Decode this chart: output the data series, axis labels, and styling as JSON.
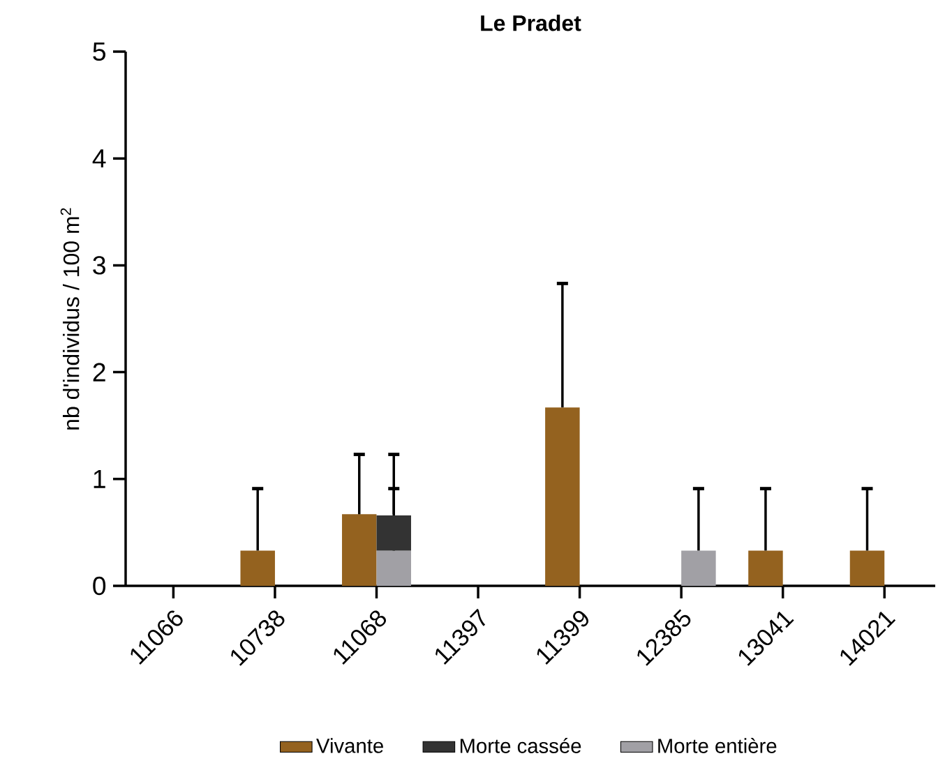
{
  "chart_data": {
    "type": "bar",
    "title": "Le Pradet",
    "ylabel": "nb d'individus / 100 m$^{2}$",
    "categories": [
      "11066",
      "10738",
      "11068",
      "11397",
      "11399",
      "12385",
      "13041",
      "14021"
    ],
    "ylim": [
      0,
      5
    ],
    "yticks": [
      0,
      1,
      2,
      3,
      4,
      5
    ],
    "legend": "bottom",
    "series": [
      {
        "name": "Vivante",
        "color": "#94621f",
        "values": [
          0,
          0.33,
          0.67,
          0,
          1.67,
          0,
          0.33,
          0.33
        ],
        "errors": [
          null,
          [
            0.33,
            0.91
          ],
          [
            0.67,
            1.23
          ],
          null,
          [
            1.67,
            2.83
          ],
          null,
          [
            0.33,
            0.91
          ],
          [
            0.33,
            0.91
          ]
        ]
      },
      {
        "name": "Morte entière",
        "color": "#a1a0a5",
        "values": [
          0,
          0,
          0.33,
          0,
          0,
          0.33,
          0,
          0
        ],
        "errors": [
          null,
          null,
          [
            0.33,
            0.91
          ],
          null,
          null,
          [
            0.33,
            0.91
          ],
          null,
          null
        ]
      },
      {
        "name": "Morte cassée",
        "color": "#333333",
        "base": [
          null,
          null,
          0.33,
          null,
          null,
          null,
          null,
          null
        ],
        "values": [
          0,
          0,
          0.33,
          0,
          0,
          0,
          0,
          0
        ],
        "errors": [
          null,
          null,
          [
            0.67,
            1.23
          ],
          null,
          null,
          null,
          null,
          null
        ]
      }
    ]
  }
}
